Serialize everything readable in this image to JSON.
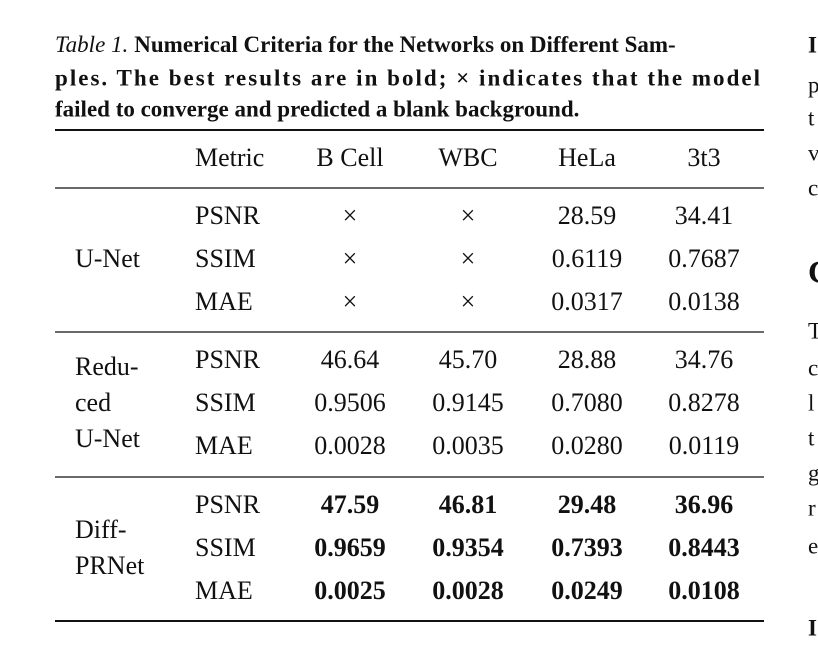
{
  "caption": {
    "label": "Table 1.",
    "lines": [
      "Numerical Criteria for the Networks on Different Sam-",
      "ples. The best results are in bold; × indicates that the model",
      "failed to converge and predicted a blank background."
    ]
  },
  "table": {
    "header": [
      "Metric",
      "B Cell",
      "WBC",
      "HeLa",
      "3t3"
    ],
    "groups": [
      {
        "name_lines": [
          "U-Net"
        ],
        "bold": false,
        "rows": [
          [
            "PSNR",
            "×",
            "×",
            "28.59",
            "34.41"
          ],
          [
            "SSIM",
            "×",
            "×",
            "0.6119",
            "0.7687"
          ],
          [
            "MAE",
            "×",
            "×",
            "0.0317",
            "0.0138"
          ]
        ]
      },
      {
        "name_lines": [
          "Redu-",
          "ced",
          "U-Net"
        ],
        "bold": false,
        "rows": [
          [
            "PSNR",
            "46.64",
            "45.70",
            "28.88",
            "34.76"
          ],
          [
            "SSIM",
            "0.9506",
            "0.9145",
            "0.7080",
            "0.8278"
          ],
          [
            "MAE",
            "0.0028",
            "0.0035",
            "0.0280",
            "0.0119"
          ]
        ]
      },
      {
        "name_lines": [
          "Diff-",
          "PRNet"
        ],
        "bold": true,
        "rows": [
          [
            "PSNR",
            "47.59",
            "46.81",
            "29.48",
            "36.96"
          ],
          [
            "SSIM",
            "0.9659",
            "0.9354",
            "0.7393",
            "0.8443"
          ],
          [
            "MAE",
            "0.0025",
            "0.0028",
            "0.0249",
            "0.0108"
          ]
        ]
      }
    ]
  },
  "margin_fragments": [
    "I",
    "p",
    "t",
    "v",
    "c",
    "C",
    "T",
    "c",
    "l",
    "t",
    "g",
    "r",
    "e",
    "I"
  ]
}
